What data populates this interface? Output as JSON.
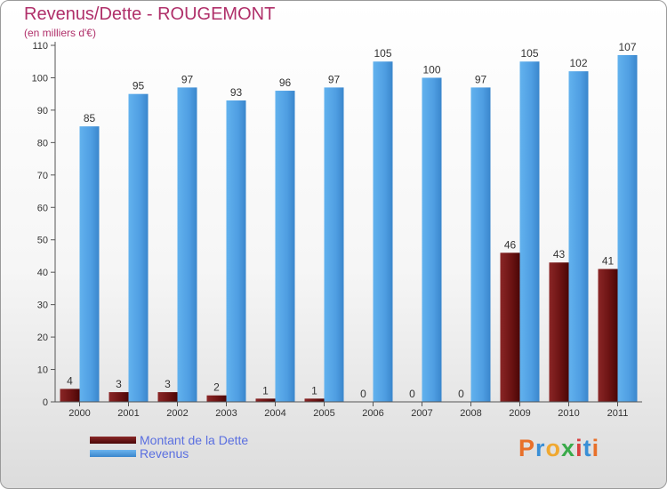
{
  "chart_data": {
    "type": "bar",
    "title": "Revenus/Dette - ROUGEMONT",
    "subtitle": "(en milliers d'€)",
    "categories": [
      "2000",
      "2001",
      "2002",
      "2003",
      "2004",
      "2005",
      "2006",
      "2007",
      "2008",
      "2009",
      "2010",
      "2011"
    ],
    "series": [
      {
        "name": "Montant de la Dette",
        "color": "#6b1010",
        "values": [
          4,
          3,
          3,
          2,
          1,
          1,
          0,
          0,
          0,
          46,
          43,
          41
        ]
      },
      {
        "name": "Revenus",
        "color": "#4a9ee0",
        "values": [
          85,
          95,
          97,
          93,
          96,
          97,
          105,
          100,
          97,
          105,
          102,
          107
        ]
      }
    ],
    "ylim": [
      0,
      110
    ],
    "yticks": [
      0,
      10,
      20,
      30,
      40,
      50,
      60,
      70,
      80,
      90,
      100,
      110
    ],
    "grid": false,
    "legend": "bottom-left"
  },
  "logo": {
    "text": "Proxiti",
    "colors": [
      "#e8702a",
      "#3a8fd6",
      "#f0a830",
      "#3aaa4a",
      "#d94040",
      "#3a8fd6",
      "#e8702a"
    ]
  }
}
